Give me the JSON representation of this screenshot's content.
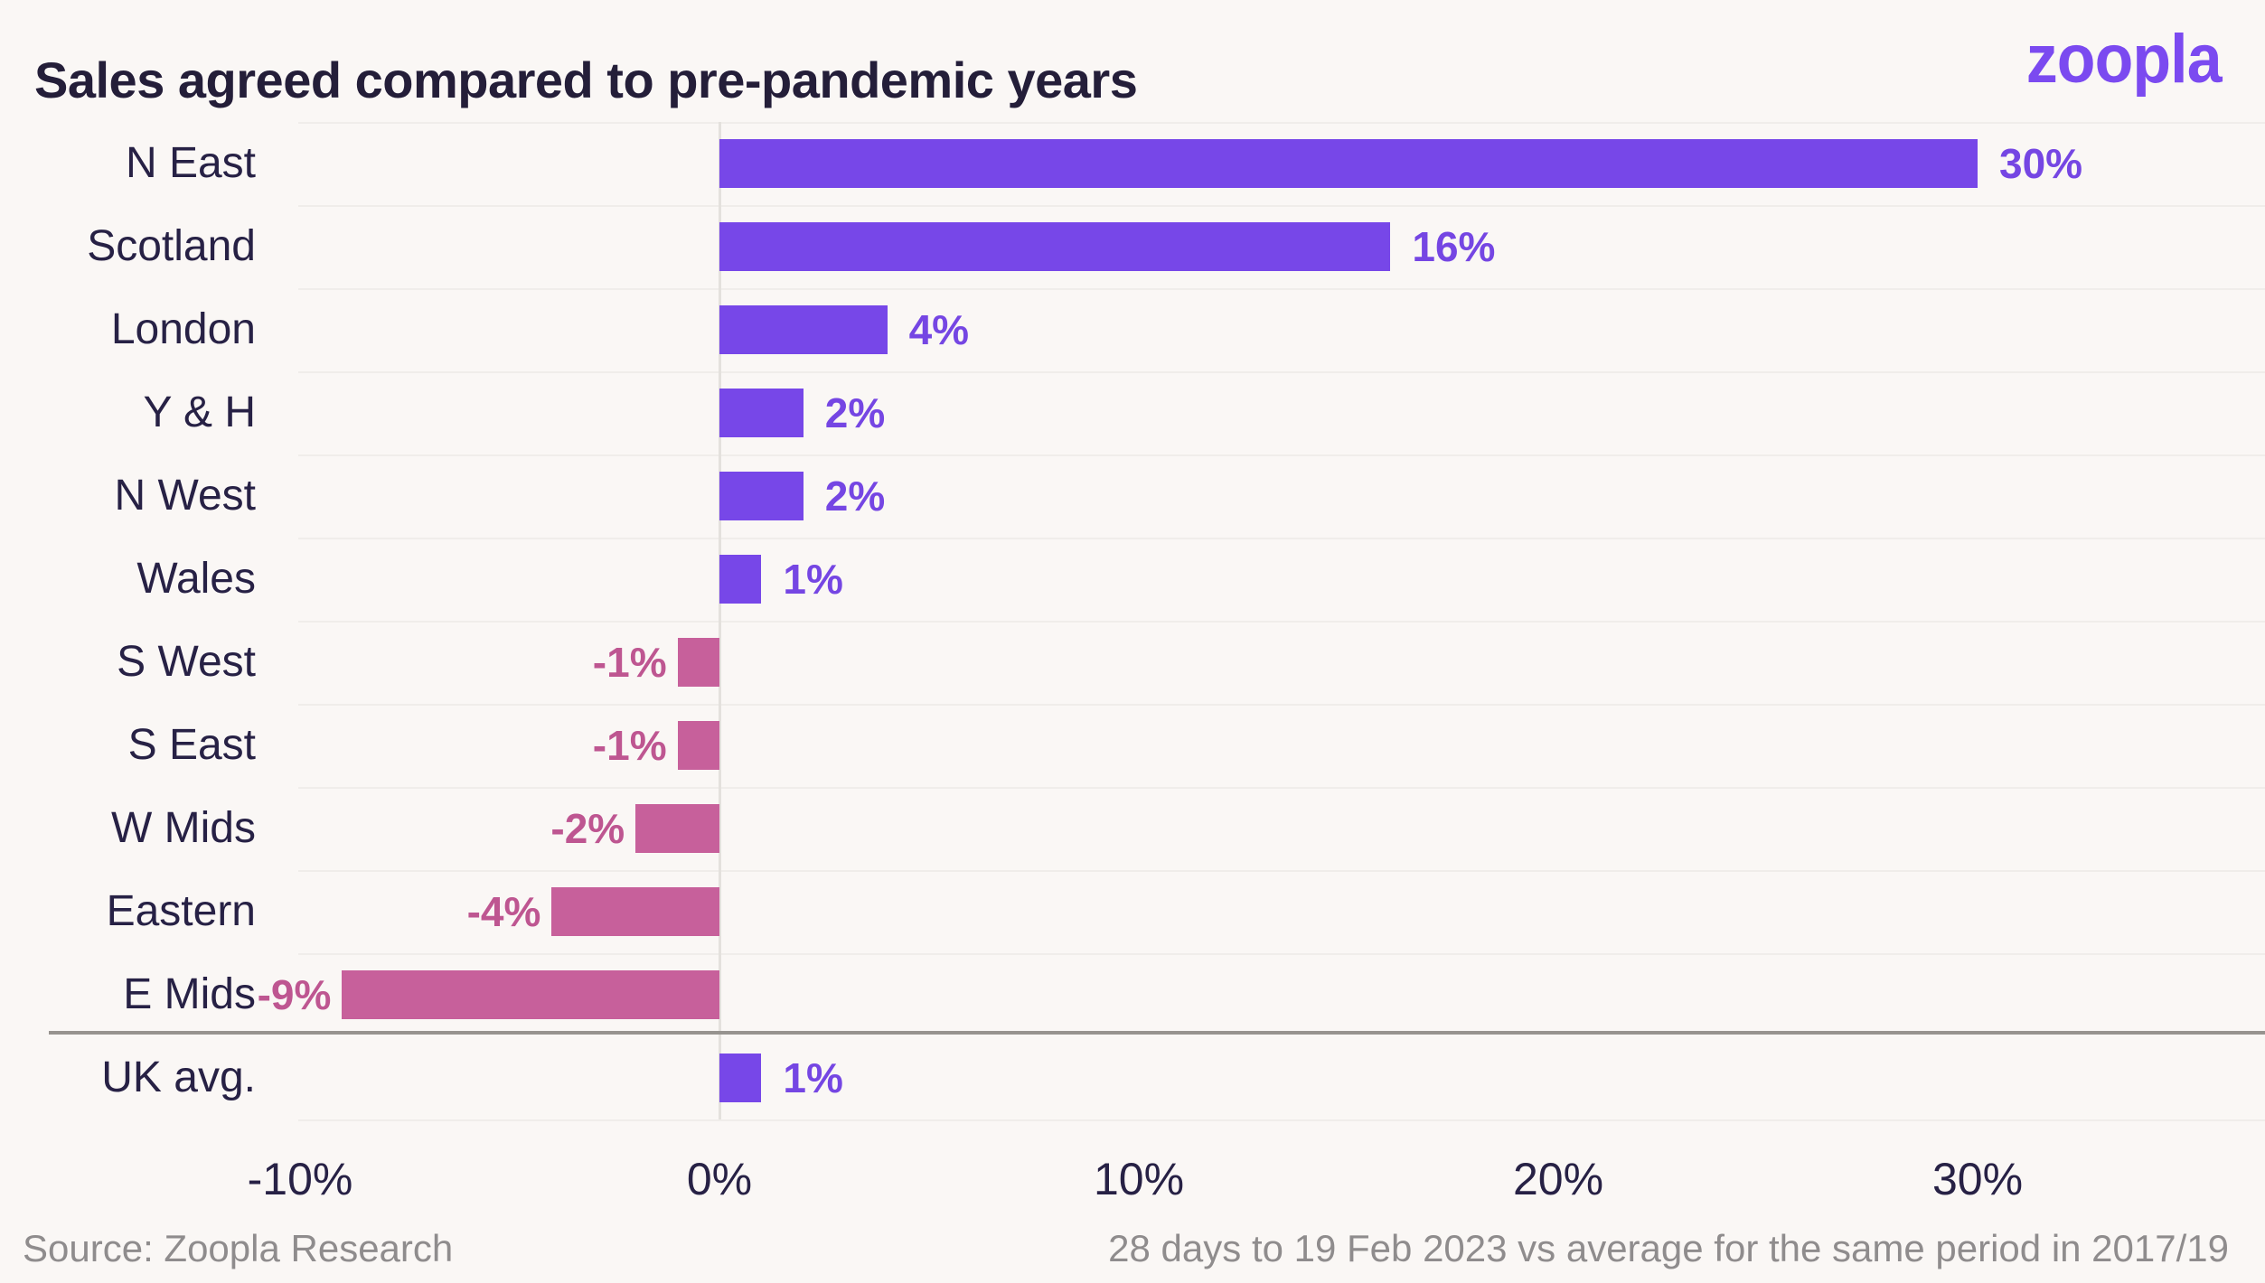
{
  "header": {
    "title": "Sales agreed compared to pre-pandemic years",
    "logo_text": "zoopla"
  },
  "footer": {
    "source": "Source: Zoopla Research",
    "note": "28 days to 19 Feb 2023 vs average for the same period in 2017/19"
  },
  "colors": {
    "background": "#FAF7F5",
    "bar_positive": "#7747E8",
    "bar_negative": "#C7609B",
    "value_positive": "#7546E3",
    "value_negative": "#BE5691",
    "text_dark": "#272145",
    "title_dark": "#241E39",
    "footer_gray": "#8F8C8D",
    "separator_gray": "#97938F",
    "gridline": "#F0EDEA",
    "zero_line": "#E4E1DD",
    "logo_purple": "#7B4AF0"
  },
  "chart_data": {
    "type": "bar",
    "orientation": "horizontal",
    "title": "Sales agreed compared to pre-pandemic years",
    "categories": [
      "N East",
      "Scotland",
      "London",
      "Y & H",
      "N West",
      "Wales",
      "S West",
      "S East",
      "W Mids",
      "Eastern",
      "E Mids"
    ],
    "values": [
      30,
      16,
      4,
      2,
      2,
      1,
      -1,
      -1,
      -2,
      -4,
      -9
    ],
    "value_labels": [
      "30%",
      "16%",
      "4%",
      "2%",
      "2%",
      "1%",
      "-1%",
      "-1%",
      "-2%",
      "-4%",
      "-9%"
    ],
    "uk_avg": {
      "category": "UK avg.",
      "value": 1,
      "value_label": "1%"
    },
    "x_ticks": [
      {
        "value": -10,
        "label": "-10%"
      },
      {
        "value": 0,
        "label": "0%"
      },
      {
        "value": 10,
        "label": "10%"
      },
      {
        "value": 20,
        "label": "20%"
      },
      {
        "value": 30,
        "label": "30%"
      }
    ],
    "xlim": [
      -10,
      37
    ],
    "grid": "horizontal-row-separators",
    "legend": "none",
    "note": "28 days to 19 Feb 2023 vs average for the same period in 2017/19",
    "source": "Source: Zoopla Research"
  }
}
